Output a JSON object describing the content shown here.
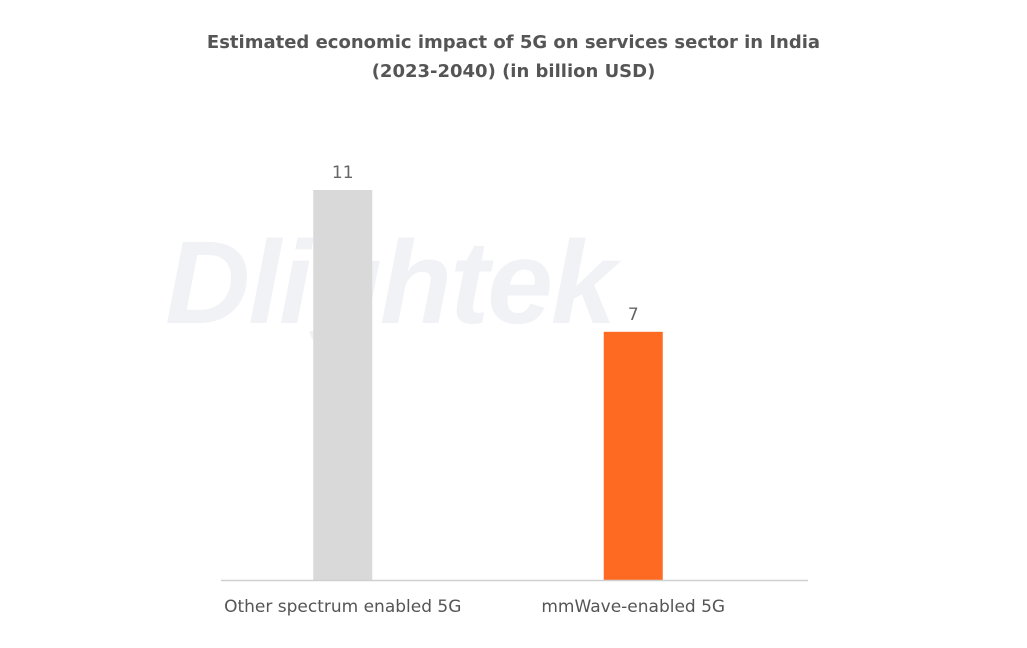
{
  "watermark": "Dlightek",
  "chart_data": {
    "type": "bar",
    "title": "Estimated economic impact of 5G on services sector in India",
    "subtitle": "(2023-2040) (in billion USD)",
    "categories": [
      "Other spectrum enabled 5G",
      "mmWave-enabled 5G"
    ],
    "values": [
      11,
      7
    ],
    "colors": [
      "#d9d9d9",
      "#ff6a22"
    ],
    "value_labels": [
      "11",
      "7"
    ],
    "xlabel": "",
    "ylabel": "",
    "ylim": [
      0,
      11
    ],
    "grid": false,
    "legend": "none"
  }
}
